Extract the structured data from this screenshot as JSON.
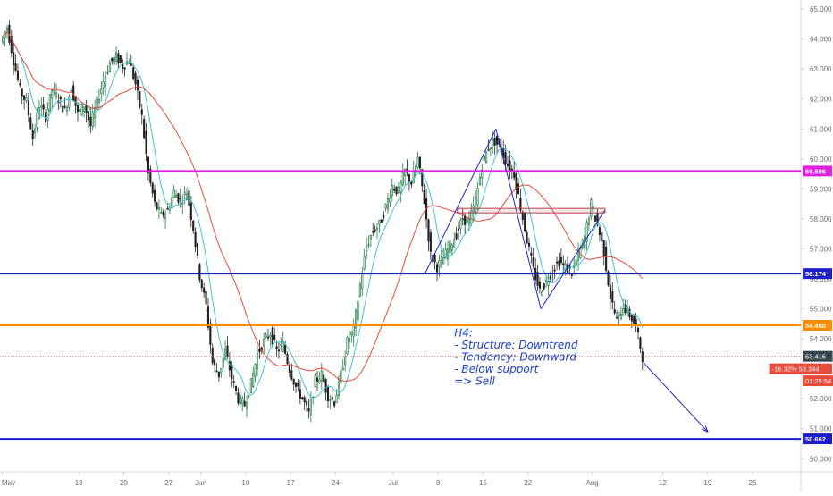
{
  "chart_data": {
    "type": "candlestick",
    "xlabel": "",
    "ylabel": "",
    "ylim": [
      49.8,
      65.3
    ],
    "y_ticks": [
      50.0,
      51.0,
      52.0,
      53.0,
      54.0,
      55.0,
      56.0,
      57.0,
      58.0,
      59.0,
      60.0,
      61.0,
      62.0,
      63.0,
      64.0,
      65.0
    ],
    "y_tick_labels": [
      "50.000",
      "51.000",
      "52.000",
      "53.000",
      "54.000",
      "55.000",
      "56.000",
      "57.000",
      "58.000",
      "59.000",
      "60.000",
      "61.000",
      "62.000",
      "63.000",
      "64.000",
      "65.000"
    ],
    "x_range_days": [
      0,
      101
    ],
    "x_ticks": [
      {
        "day": 0,
        "label": "May"
      },
      {
        "day": 12,
        "label": "13"
      },
      {
        "day": 19,
        "label": "20"
      },
      {
        "day": 26,
        "label": "27"
      },
      {
        "day": 31,
        "label": "Jun"
      },
      {
        "day": 38,
        "label": "10"
      },
      {
        "day": 45,
        "label": "17"
      },
      {
        "day": 52,
        "label": "24"
      },
      {
        "day": 61,
        "label": "Jul"
      },
      {
        "day": 68,
        "label": "8"
      },
      {
        "day": 75,
        "label": "15"
      },
      {
        "day": 82,
        "label": "22"
      },
      {
        "day": 92,
        "label": "Aug"
      },
      {
        "day": 103,
        "label": "12"
      },
      {
        "day": 110,
        "label": "19"
      },
      {
        "day": 117,
        "label": "26"
      }
    ],
    "grid": false,
    "price_path": [
      [
        0,
        63.9
      ],
      [
        1,
        64.4
      ],
      [
        2,
        63.3
      ],
      [
        3,
        62.3
      ],
      [
        4,
        61.9
      ],
      [
        5,
        60.7
      ],
      [
        6,
        61.8
      ],
      [
        7,
        61.4
      ],
      [
        8,
        62.3
      ],
      [
        9,
        62.0
      ],
      [
        10,
        61.6
      ],
      [
        11,
        62.4
      ],
      [
        12,
        61.5
      ],
      [
        13,
        61.8
      ],
      [
        14,
        61.1
      ],
      [
        15,
        61.9
      ],
      [
        16,
        62.6
      ],
      [
        17,
        63.2
      ],
      [
        18,
        63.4
      ],
      [
        19,
        63.1
      ],
      [
        20,
        63.3
      ],
      [
        21,
        62.5
      ],
      [
        22,
        61.4
      ],
      [
        23,
        59.5
      ],
      [
        24,
        58.5
      ],
      [
        25,
        58.1
      ],
      [
        26,
        58.3
      ],
      [
        27,
        58.9
      ],
      [
        28,
        58.6
      ],
      [
        29,
        58.9
      ],
      [
        30,
        57.7
      ],
      [
        31,
        56.1
      ],
      [
        32,
        55.1
      ],
      [
        33,
        53.2
      ],
      [
        34,
        52.8
      ],
      [
        35,
        53.6
      ],
      [
        36,
        52.7
      ],
      [
        37,
        52.0
      ],
      [
        38,
        51.8
      ],
      [
        39,
        52.5
      ],
      [
        40,
        53.5
      ],
      [
        41,
        53.9
      ],
      [
        42,
        54.2
      ],
      [
        43,
        53.6
      ],
      [
        44,
        53.8
      ],
      [
        45,
        53.0
      ],
      [
        46,
        52.4
      ],
      [
        47,
        52.0
      ],
      [
        48,
        51.5
      ],
      [
        49,
        52.6
      ],
      [
        50,
        52.8
      ],
      [
        51,
        52.1
      ],
      [
        52,
        51.9
      ],
      [
        53,
        52.8
      ],
      [
        54,
        53.9
      ],
      [
        55,
        54.3
      ],
      [
        56,
        55.8
      ],
      [
        57,
        57.1
      ],
      [
        58,
        57.6
      ],
      [
        59,
        57.8
      ],
      [
        60,
        58.4
      ],
      [
        61,
        59.1
      ],
      [
        62,
        58.9
      ],
      [
        63,
        59.6
      ],
      [
        64,
        59.2
      ],
      [
        65,
        60.0
      ],
      [
        66,
        58.6
      ],
      [
        67,
        56.8
      ],
      [
        68,
        56.4
      ],
      [
        69,
        56.7
      ],
      [
        70,
        57.1
      ],
      [
        71,
        57.5
      ],
      [
        72,
        58.0
      ],
      [
        73,
        57.9
      ],
      [
        74,
        58.6
      ],
      [
        75,
        59.8
      ],
      [
        76,
        60.4
      ],
      [
        77,
        60.6
      ],
      [
        78,
        60.3
      ],
      [
        79,
        59.8
      ],
      [
        80,
        59.5
      ],
      [
        81,
        58.4
      ],
      [
        82,
        57.3
      ],
      [
        83,
        56.3
      ],
      [
        84,
        55.6
      ],
      [
        85,
        55.9
      ],
      [
        86,
        56.3
      ],
      [
        87,
        56.6
      ],
      [
        88,
        56.4
      ],
      [
        89,
        56.2
      ],
      [
        90,
        56.8
      ],
      [
        91,
        57.4
      ],
      [
        92,
        58.5
      ],
      [
        93,
        57.8
      ],
      [
        94,
        56.9
      ],
      [
        95,
        55.4
      ],
      [
        96,
        54.6
      ],
      [
        97,
        55.1
      ],
      [
        98,
        54.8
      ],
      [
        99,
        54.4
      ],
      [
        100,
        53.4
      ]
    ],
    "moving_averages": [
      {
        "color": "#3fc2d6",
        "period_days": 3
      },
      {
        "color": "#e74c3c",
        "period_days": 11
      }
    ],
    "horizontal_levels": [
      {
        "value": 59.596,
        "color": "#e020e0",
        "label": "59.596"
      },
      {
        "value": 56.174,
        "color": "#1e1ec8",
        "label": "56.174"
      },
      {
        "value": 54.45,
        "color": "#ff8c00",
        "label": "54.450"
      },
      {
        "value": 50.662,
        "color": "#1e1ec8",
        "label": "50.662"
      }
    ],
    "current_price_line": {
      "value": 53.416,
      "color": "#e74c3c"
    },
    "price_labels": [
      {
        "value": 53.416,
        "text": "53.416",
        "bg": "#37474f",
        "color": "#ffffff"
      },
      {
        "value": 53.0,
        "text": "-16.32% 53.344",
        "bg": "#e74c3c",
        "color": "#ffffff"
      },
      {
        "value": 52.6,
        "text": "01:25:54",
        "bg": "#e74c3c",
        "color": "#ffffff"
      }
    ],
    "pattern_lines": {
      "color": "#1a24c8",
      "segments": [
        [
          [
            66,
            56.2
          ],
          [
            77,
            61.0
          ]
        ],
        [
          [
            77,
            61.0
          ],
          [
            84,
            55.0
          ]
        ],
        [
          [
            84,
            55.0
          ],
          [
            94,
            58.3
          ]
        ]
      ]
    },
    "neckline_box": {
      "x1": 71,
      "x2": 94,
      "y_top": 58.35,
      "y_bottom": 58.2,
      "color": "#b34545"
    },
    "forecast_arrow": {
      "from": [
        100,
        53.2
      ],
      "to": [
        110,
        50.9
      ],
      "color": "#1a24c8"
    },
    "annotation": {
      "lines": [
        "H4:",
        "- Structure: Downtrend",
        "- Tendency: Downward",
        "- Below support",
        "=> Sell"
      ],
      "color": "#1a3fc8",
      "x_day": 70.5,
      "y_value": 54.2
    },
    "colors": {
      "up": "#26a69a",
      "down": "#ef5350",
      "candle_up": "#1e7a43",
      "candle_down": "#222222",
      "axis_text": "#6b6b6b",
      "frame": "#d6d6d6"
    }
  }
}
